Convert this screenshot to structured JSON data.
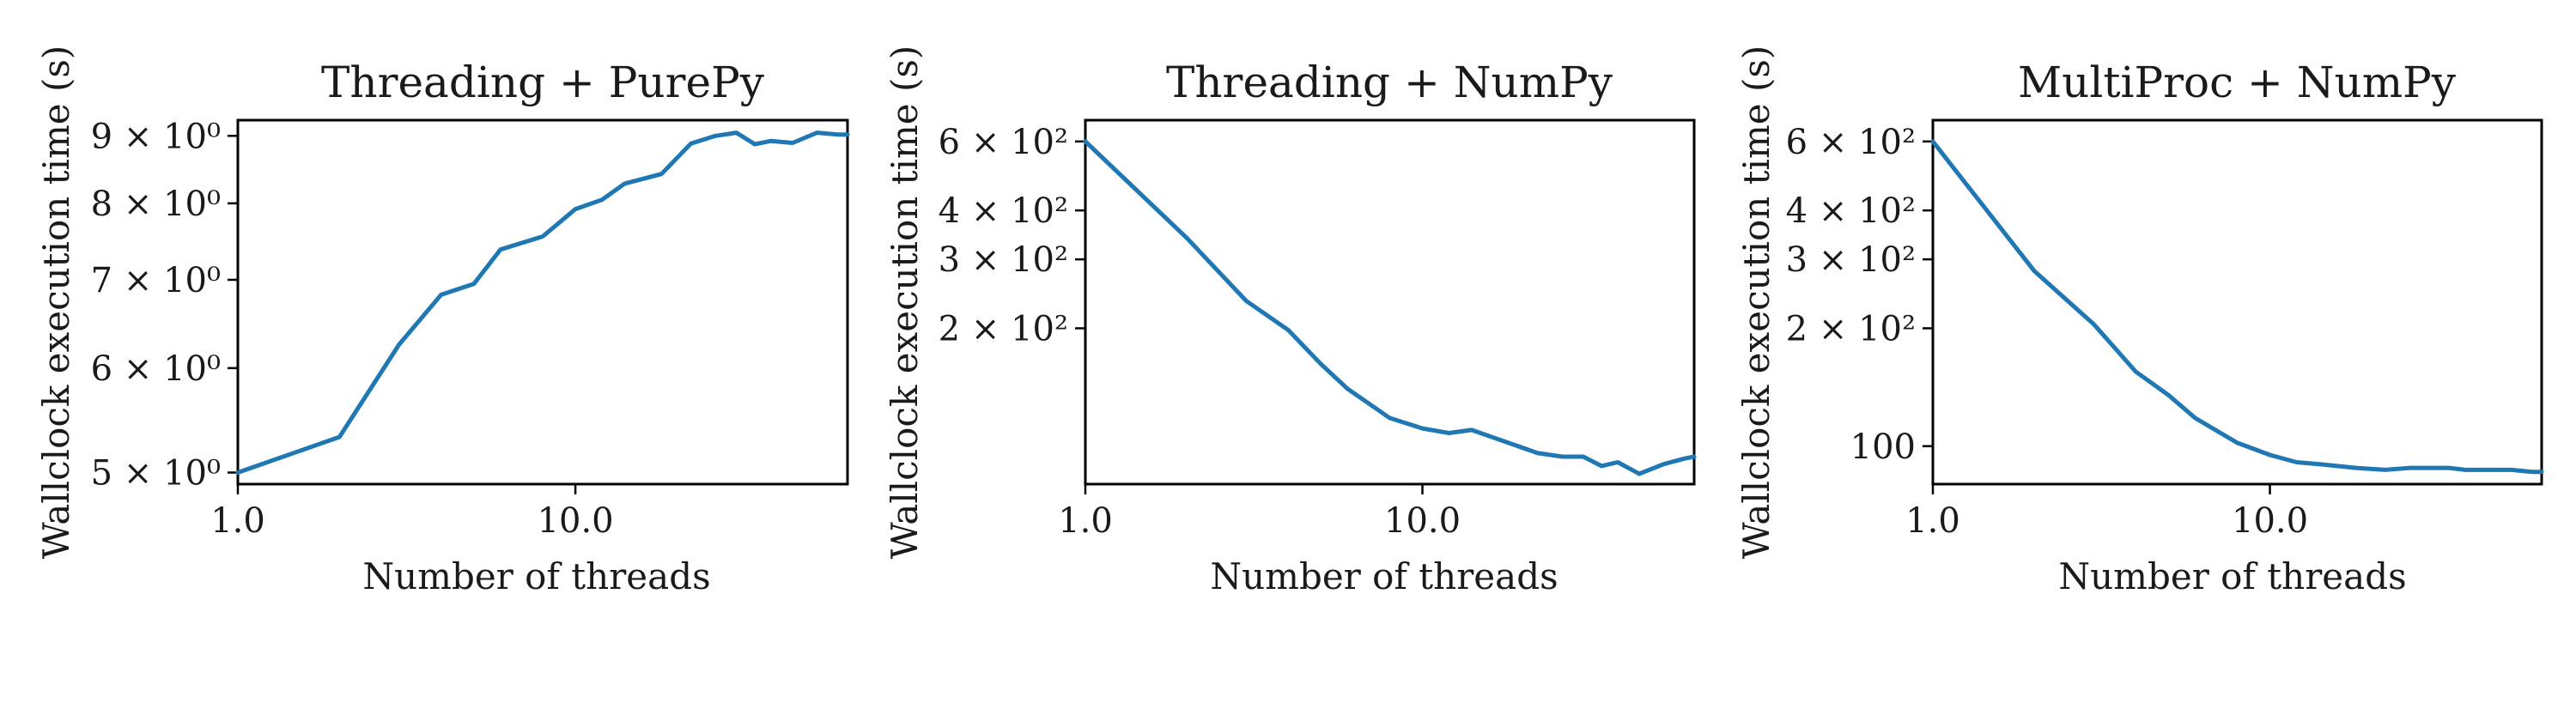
{
  "chart_data": [
    {
      "type": "line",
      "title": "Threading + PurePy",
      "xlabel": "Number of threads",
      "ylabel": "Wallclock execution time (s)",
      "xscale": "log",
      "yscale": "log",
      "xlim": [
        1,
        64
      ],
      "ylim": [
        4.9,
        9.25
      ],
      "x_ticks": [
        {
          "value": 1,
          "label": "1.0"
        },
        {
          "value": 10,
          "label": "10.0"
        }
      ],
      "y_ticks": [
        {
          "value": 5,
          "label": "5 × 10⁰"
        },
        {
          "value": 6,
          "label": "6 × 10⁰"
        },
        {
          "value": 7,
          "label": "7 × 10⁰"
        },
        {
          "value": 8,
          "label": "8 × 10⁰"
        },
        {
          "value": 9,
          "label": "9 × 10⁰"
        }
      ],
      "grid": false,
      "series": [
        {
          "color": "#1f77b4",
          "x": [
            1,
            2,
            3,
            4,
            5,
            6,
            8,
            10,
            12,
            14,
            18,
            22,
            26,
            30,
            34,
            38,
            44,
            52,
            60,
            64
          ],
          "y": [
            5.0,
            5.32,
            6.25,
            6.82,
            6.95,
            7.38,
            7.55,
            7.92,
            8.05,
            8.28,
            8.42,
            8.88,
            9.0,
            9.05,
            8.87,
            8.92,
            8.89,
            9.05,
            9.02,
            9.02
          ]
        }
      ]
    },
    {
      "type": "line",
      "title": "Threading + NumPy",
      "xlabel": "Number of threads",
      "ylabel": "Wallclock execution time (s)",
      "xscale": "log",
      "yscale": "log",
      "xlim": [
        1,
        64
      ],
      "ylim": [
        80,
        680
      ],
      "x_ticks": [
        {
          "value": 1,
          "label": "1.0"
        },
        {
          "value": 10,
          "label": "10.0"
        }
      ],
      "y_ticks": [
        {
          "value": 200,
          "label": "2 × 10²"
        },
        {
          "value": 300,
          "label": "3 × 10²"
        },
        {
          "value": 400,
          "label": "4 × 10²"
        },
        {
          "value": 600,
          "label": "6 × 10²"
        }
      ],
      "grid": false,
      "series": [
        {
          "color": "#1f77b4",
          "x": [
            1,
            2,
            3,
            4,
            5,
            6,
            8,
            10,
            12,
            14,
            18,
            22,
            26,
            30,
            34,
            38,
            44,
            52,
            60,
            64
          ],
          "y": [
            600,
            340,
            235,
            198,
            162,
            140,
            118,
            111,
            108,
            110,
            102,
            96,
            94,
            94,
            89,
            91,
            85,
            90,
            93,
            94
          ]
        }
      ]
    },
    {
      "type": "line",
      "title": "MultiProc + NumPy",
      "xlabel": "Number of threads",
      "ylabel": "Wallclock execution time (s)",
      "xscale": "log",
      "yscale": "log",
      "xlim": [
        1,
        64
      ],
      "ylim": [
        80,
        680
      ],
      "x_ticks": [
        {
          "value": 1,
          "label": "1.0"
        },
        {
          "value": 10,
          "label": "10.0"
        }
      ],
      "y_ticks": [
        {
          "value": 100,
          "label": "100"
        },
        {
          "value": 200,
          "label": "2 × 10²"
        },
        {
          "value": 300,
          "label": "3 × 10²"
        },
        {
          "value": 400,
          "label": "4 × 10²"
        },
        {
          "value": 600,
          "label": "6 × 10²"
        }
      ],
      "grid": false,
      "series": [
        {
          "color": "#1f77b4",
          "x": [
            1,
            2,
            3,
            4,
            5,
            6,
            8,
            10,
            12,
            14,
            18,
            22,
            26,
            30,
            34,
            38,
            44,
            52,
            60,
            64
          ],
          "y": [
            600,
            280,
            205,
            155,
            135,
            118,
            102,
            95,
            91,
            90,
            88,
            87,
            88,
            88,
            88,
            87,
            87,
            87,
            86,
            86
          ]
        }
      ]
    }
  ]
}
